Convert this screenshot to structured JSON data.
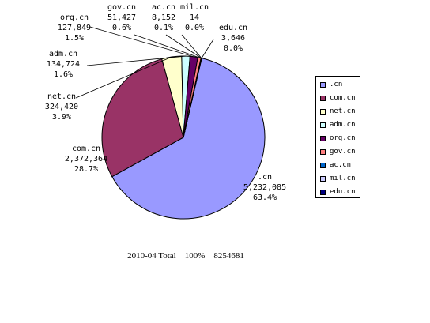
{
  "chart_data": {
    "type": "pie",
    "title": "",
    "caption": {
      "date": "2010-04",
      "total_label": "Total",
      "percent": "100%",
      "total": "8254681"
    },
    "legend_position": "right",
    "slices": [
      {
        "name": ".cn",
        "value": 5232085,
        "value_text": "5,232,085",
        "percent_text": "63.4%",
        "color": "#9999ff"
      },
      {
        "name": "com.cn",
        "value": 2372364,
        "value_text": "2,372,364",
        "percent_text": "28.7%",
        "color": "#993366"
      },
      {
        "name": "net.cn",
        "value": 324420,
        "value_text": "324,420",
        "percent_text": "3.9%",
        "color": "#ffffcc"
      },
      {
        "name": "adm.cn",
        "value": 134724,
        "value_text": "134,724",
        "percent_text": "1.6%",
        "color": "#ccffff"
      },
      {
        "name": "org.cn",
        "value": 127849,
        "value_text": "127,849",
        "percent_text": "1.5%",
        "color": "#660066"
      },
      {
        "name": "gov.cn",
        "value": 51427,
        "value_text": "51,427",
        "percent_text": "0.6%",
        "color": "#ff8080"
      },
      {
        "name": "ac.cn",
        "value": 8152,
        "value_text": "8,152",
        "percent_text": "0.1%",
        "color": "#0066cc"
      },
      {
        "name": "mil.cn",
        "value": 14,
        "value_text": "14",
        "percent_text": "0.0%",
        "color": "#ccccff"
      },
      {
        "name": "edu.cn",
        "value": 3646,
        "value_text": "3,646",
        "percent_text": "0.0%",
        "color": "#000080"
      }
    ]
  }
}
